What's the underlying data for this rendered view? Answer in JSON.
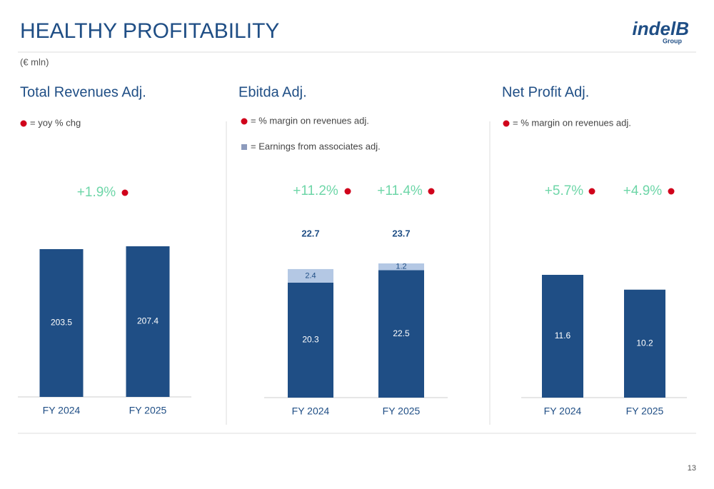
{
  "header": {
    "title": "HEALTHY PROFITABILITY",
    "unit": "(€ mln)",
    "logo": "indelB",
    "logo_sub": "Group"
  },
  "page_number": "13",
  "chart_data": [
    {
      "type": "stacked-bar",
      "title": "Total Revenues Adj.",
      "legend": [
        {
          "label": "= yoy % chg",
          "color": "#d0021b"
        }
      ],
      "categories": [
        "FY 2024",
        "FY 2025"
      ],
      "series": [
        {
          "color": "#1f4e85",
          "values": [
            203.5,
            207.4
          ]
        }
      ],
      "annotations": [
        "+1.9%"
      ],
      "annotation_color": "#6ed6a8"
    },
    {
      "type": "stacked-bar",
      "title": "Ebitda Adj.",
      "legend": [
        {
          "label": "= % margin on revenues adj.",
          "color": "#d0021b"
        }
      ],
      "categories": [
        "FY 2024",
        "FY 2025"
      ],
      "series": [
        {
          "color": "#1f4e85",
          "values": [
            20.3,
            22.5
          ]
        },
        {
          "name": "= Earnings from associates adj.",
          "color": "#b4c8e4",
          "values": [
            2.4,
            1.2
          ]
        }
      ],
      "totals": [
        22.7,
        23.7
      ],
      "annotations": [
        "+11.2%",
        "+11.4%"
      ],
      "annotation_color": "#6ed6a8"
    },
    {
      "type": "stacked-bar",
      "title": "Net Profit Adj.",
      "legend": [
        {
          "label": "= % margin on revenues adj.",
          "color": "#d0021b"
        }
      ],
      "categories": [
        "FY 2024",
        "FY 2025"
      ],
      "series": [
        {
          "color": "#1f4e85",
          "values": [
            11.6,
            10.2
          ]
        }
      ],
      "annotations": [
        "+5.7%",
        "+4.9%"
      ],
      "annotation_color": "#6ed6a8"
    }
  ]
}
